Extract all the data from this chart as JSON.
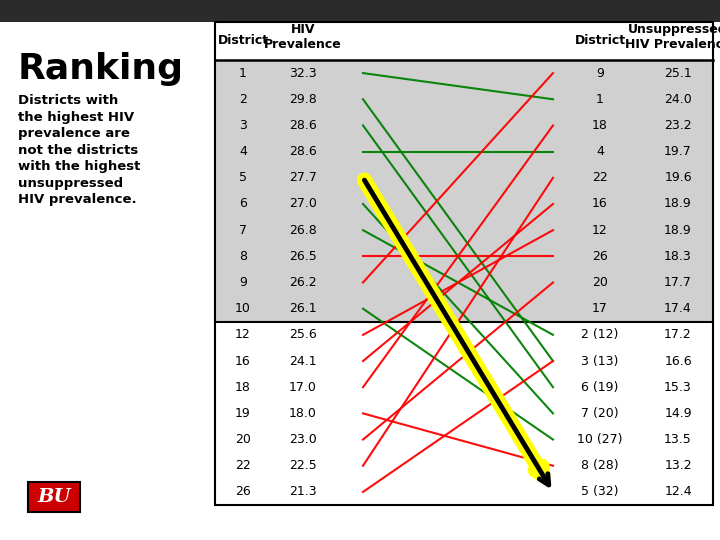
{
  "title": "Ranking",
  "subtitle": "Districts with\nthe highest HIV\nprevalence are\nnot the districts\nwith the highest\nunsuppressed\nHIV prevalence.",
  "header_bg": "#2b2b2b",
  "table_bg": "#d0d0d0",
  "white_bg": "#ffffff",
  "left_rows": [
    [
      1,
      "32.3"
    ],
    [
      2,
      "29.8"
    ],
    [
      3,
      "28.6"
    ],
    [
      4,
      "28.6"
    ],
    [
      5,
      "27.7"
    ],
    [
      6,
      "27.0"
    ],
    [
      7,
      "26.8"
    ],
    [
      8,
      "26.5"
    ],
    [
      9,
      "26.2"
    ],
    [
      10,
      "26.1"
    ],
    [
      12,
      "25.6"
    ],
    [
      16,
      "24.1"
    ],
    [
      18,
      "17.0"
    ],
    [
      19,
      "18.0"
    ],
    [
      20,
      "23.0"
    ],
    [
      22,
      "22.5"
    ],
    [
      26,
      "21.3"
    ]
  ],
  "right_rows": [
    [
      9,
      "25.1"
    ],
    [
      1,
      "24.0"
    ],
    [
      18,
      "23.2"
    ],
    [
      4,
      "19.7"
    ],
    [
      22,
      "19.6"
    ],
    [
      16,
      "18.9"
    ],
    [
      12,
      "18.9"
    ],
    [
      26,
      "18.3"
    ],
    [
      20,
      "17.7"
    ],
    [
      17,
      "17.4"
    ],
    [
      "2 (12)",
      "17.2"
    ],
    [
      "3 (13)",
      "16.6"
    ],
    [
      "6 (19)",
      "15.3"
    ],
    [
      "7 (20)",
      "14.9"
    ],
    [
      "10 (27)",
      "13.5"
    ],
    [
      "8 (28)",
      "13.2"
    ],
    [
      "5 (32)",
      "12.4"
    ]
  ],
  "connections": [
    {
      "left_district": "1",
      "right_district": "1",
      "color": "green"
    },
    {
      "left_district": "2",
      "right_district": "3 (13)",
      "color": "green"
    },
    {
      "left_district": "3",
      "right_district": "6 (19)",
      "color": "green"
    },
    {
      "left_district": "4",
      "right_district": "4",
      "color": "green"
    },
    {
      "left_district": "5",
      "right_district": "5 (32)",
      "color": "yellow"
    },
    {
      "left_district": "6",
      "right_district": "7 (20)",
      "color": "green"
    },
    {
      "left_district": "7",
      "right_district": "2 (12)",
      "color": "green"
    },
    {
      "left_district": "8",
      "right_district": "26",
      "color": "red"
    },
    {
      "left_district": "9",
      "right_district": "9",
      "color": "red"
    },
    {
      "left_district": "10",
      "right_district": "10 (27)",
      "color": "green"
    },
    {
      "left_district": "12",
      "right_district": "12",
      "color": "red"
    },
    {
      "left_district": "16",
      "right_district": "16",
      "color": "red"
    },
    {
      "left_district": "18",
      "right_district": "18",
      "color": "red"
    },
    {
      "left_district": "19",
      "right_district": "8 (28)",
      "color": "red"
    },
    {
      "left_district": "20",
      "right_district": "20",
      "color": "red"
    },
    {
      "left_district": "22",
      "right_district": "22",
      "color": "red"
    },
    {
      "left_district": "26",
      "right_district": "3 (13)",
      "color": "red"
    }
  ],
  "bu_box_color": "#cc0000"
}
